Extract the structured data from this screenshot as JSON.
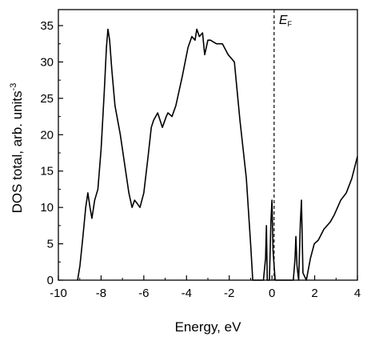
{
  "chart_data": {
    "type": "line",
    "x_label": "Energy, eV",
    "y_label": "DOS total, arb. units",
    "y_label_superscript": "-3",
    "fermi_label": "E",
    "fermi_label_subscript": "F",
    "fermi_level": 0.1,
    "xlim": [
      -10,
      4
    ],
    "ylim": [
      0,
      37.2
    ],
    "xticks": [
      -10,
      -8,
      -6,
      -4,
      -2,
      0,
      2,
      4
    ],
    "yticks": [
      0,
      5,
      10,
      15,
      20,
      25,
      30,
      35
    ],
    "series": [
      {
        "color": "#000000",
        "x": [
          -9.1,
          -8.99,
          -8.85,
          -8.72,
          -8.62,
          -8.52,
          -8.43,
          -8.3,
          -8.15,
          -8.0,
          -7.85,
          -7.75,
          -7.68,
          -7.6,
          -7.5,
          -7.35,
          -7.1,
          -6.85,
          -6.7,
          -6.55,
          -6.43,
          -6.3,
          -6.18,
          -6.0,
          -5.8,
          -5.65,
          -5.54,
          -5.35,
          -5.13,
          -4.95,
          -4.87,
          -4.68,
          -4.5,
          -4.2,
          -3.93,
          -3.75,
          -3.6,
          -3.52,
          -3.4,
          -3.25,
          -3.15,
          -3.0,
          -2.88,
          -2.6,
          -2.32,
          -2.05,
          -1.76,
          -1.5,
          -1.2,
          -1.0,
          -0.9,
          -0.4,
          -0.3,
          -0.26,
          -0.22,
          -0.12,
          -0.05,
          0.0,
          0.05,
          0.15,
          1.0,
          1.08,
          1.12,
          1.17,
          1.25,
          1.33,
          1.38,
          1.45,
          1.61,
          1.8,
          1.98,
          2.17,
          2.43,
          2.73,
          2.92,
          3.22,
          3.48,
          3.74,
          4.0
        ],
        "y": [
          0,
          2,
          6,
          10,
          12,
          10,
          8.5,
          11,
          12.5,
          18,
          26,
          32,
          34.5,
          33,
          29,
          24,
          20,
          15,
          12,
          10,
          11,
          10.5,
          10,
          12,
          17,
          21,
          22,
          23,
          21,
          22.5,
          23,
          22.5,
          24,
          28,
          32,
          33.5,
          33,
          34.5,
          33.5,
          34,
          31,
          33,
          33,
          32.5,
          32.5,
          31,
          30,
          22,
          14,
          5,
          0,
          0,
          3,
          7.5,
          0,
          0,
          8,
          11,
          4,
          0,
          0,
          3,
          6,
          2,
          0,
          8,
          11,
          1,
          0,
          3,
          5,
          5.5,
          7,
          8,
          9,
          11,
          12,
          14,
          17
        ]
      }
    ]
  }
}
